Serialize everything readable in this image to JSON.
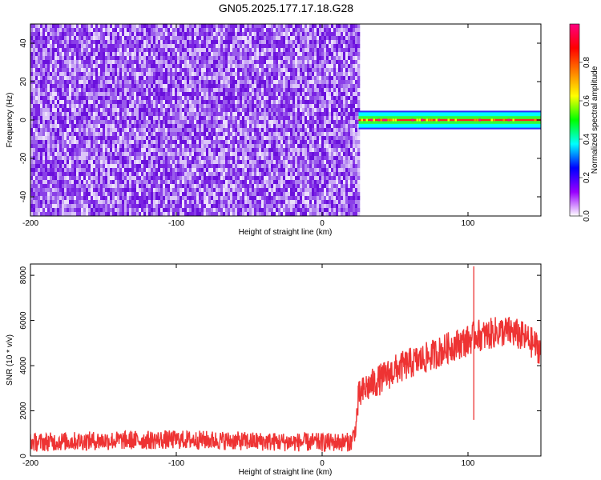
{
  "title": "GN05.2025.177.17.18.G28",
  "chart_data": [
    {
      "type": "heatmap",
      "xlabel": "Height of straight line (km)",
      "ylabel": "Frequency (Hz)",
      "xlim": [
        -200,
        150
      ],
      "ylim": [
        -50,
        50
      ],
      "x_ticks": [
        "-200",
        "-100",
        "0",
        "100"
      ],
      "y_ticks": [
        "-40",
        "-20",
        "0",
        "20",
        "40"
      ],
      "onset_height_km": 25,
      "signal_band_hz": [
        -2,
        2
      ],
      "grid": false,
      "colorbar": {
        "label": "Normalized spectral amplitude",
        "range": [
          0.0,
          1.0
        ],
        "ticks": [
          "0.0",
          "0.2",
          "0.4",
          "0.6",
          "0.8"
        ],
        "colors": [
          "#ffffff",
          "#9900ff",
          "#0000ff",
          "#00ffff",
          "#00ff00",
          "#ffff00",
          "#ff8000",
          "#ff0000",
          "#ff0080"
        ]
      }
    },
    {
      "type": "line",
      "xlabel": "Height of straight line (km)",
      "ylabel": "SNR (10 * v/v)",
      "xlim": [
        -200,
        150
      ],
      "ylim": [
        0,
        8500
      ],
      "x_ticks": [
        "-200",
        "-100",
        "0",
        "100"
      ],
      "y_ticks": [
        "0",
        "2000",
        "4000",
        "6000",
        "8000"
      ],
      "color": "#ee3333",
      "grid": false,
      "series": [
        {
          "x": [
            -200,
            -175,
            -150,
            -125,
            -100,
            -75,
            -50,
            -25,
            0,
            20,
            23,
            25,
            30,
            40,
            50,
            60,
            70,
            80,
            90,
            100,
            104,
            106,
            110,
            120,
            130,
            140,
            150
          ],
          "y": [
            600,
            650,
            680,
            700,
            720,
            700,
            650,
            620,
            600,
            620,
            1200,
            2600,
            3000,
            3400,
            3800,
            4100,
            4300,
            4600,
            4900,
            5100,
            5300,
            5400,
            5300,
            5500,
            5500,
            5200,
            4700
          ]
        }
      ],
      "annotations": [
        {
          "x": 104,
          "y": 8400,
          "text": ""
        }
      ]
    }
  ]
}
